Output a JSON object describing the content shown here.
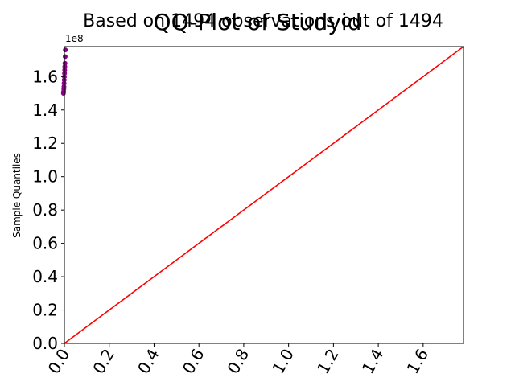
{
  "chart_data": {
    "type": "scatter",
    "title": "QQ-Plot of Studyid",
    "subtitle": "Based on 1494 observations out of 1494",
    "xlabel": "",
    "ylabel": "Sample Quantiles",
    "y_offset_text": "1e8",
    "xlim": [
      0,
      178000000
    ],
    "ylim": [
      0,
      178000000
    ],
    "x_ticks": [
      0,
      20000000,
      40000000,
      60000000,
      80000000,
      100000000,
      120000000,
      140000000,
      160000000
    ],
    "x_tick_labels": [
      "0.0",
      "0.2",
      "0.4",
      "0.6",
      "0.8",
      "1.0",
      "1.2",
      "1.4",
      "1.6"
    ],
    "y_ticks": [
      0,
      20000000,
      40000000,
      60000000,
      80000000,
      100000000,
      120000000,
      140000000,
      160000000
    ],
    "y_tick_labels": [
      "0.0",
      "0.2",
      "0.4",
      "0.6",
      "0.8",
      "1.0",
      "1.2",
      "1.4",
      "1.6"
    ],
    "series": [
      {
        "kind": "points",
        "color": "#8b008b",
        "x": [
          -2.0,
          -1.6,
          -1.2,
          -0.9,
          -0.6,
          -0.3,
          0.0,
          0.3,
          0.6,
          0.9,
          1.2,
          1.6,
          2.0
        ],
        "y": [
          150000000,
          151000000,
          152500000,
          154000000,
          156000000,
          158000000,
          160000000,
          162000000,
          164000000,
          166000000,
          168000000,
          172000000,
          176000000
        ]
      },
      {
        "kind": "reference-line",
        "color": "#ff0000",
        "x": [
          0,
          178000000
        ],
        "y": [
          0,
          178000000
        ]
      }
    ],
    "grid": false,
    "legend": "none"
  }
}
